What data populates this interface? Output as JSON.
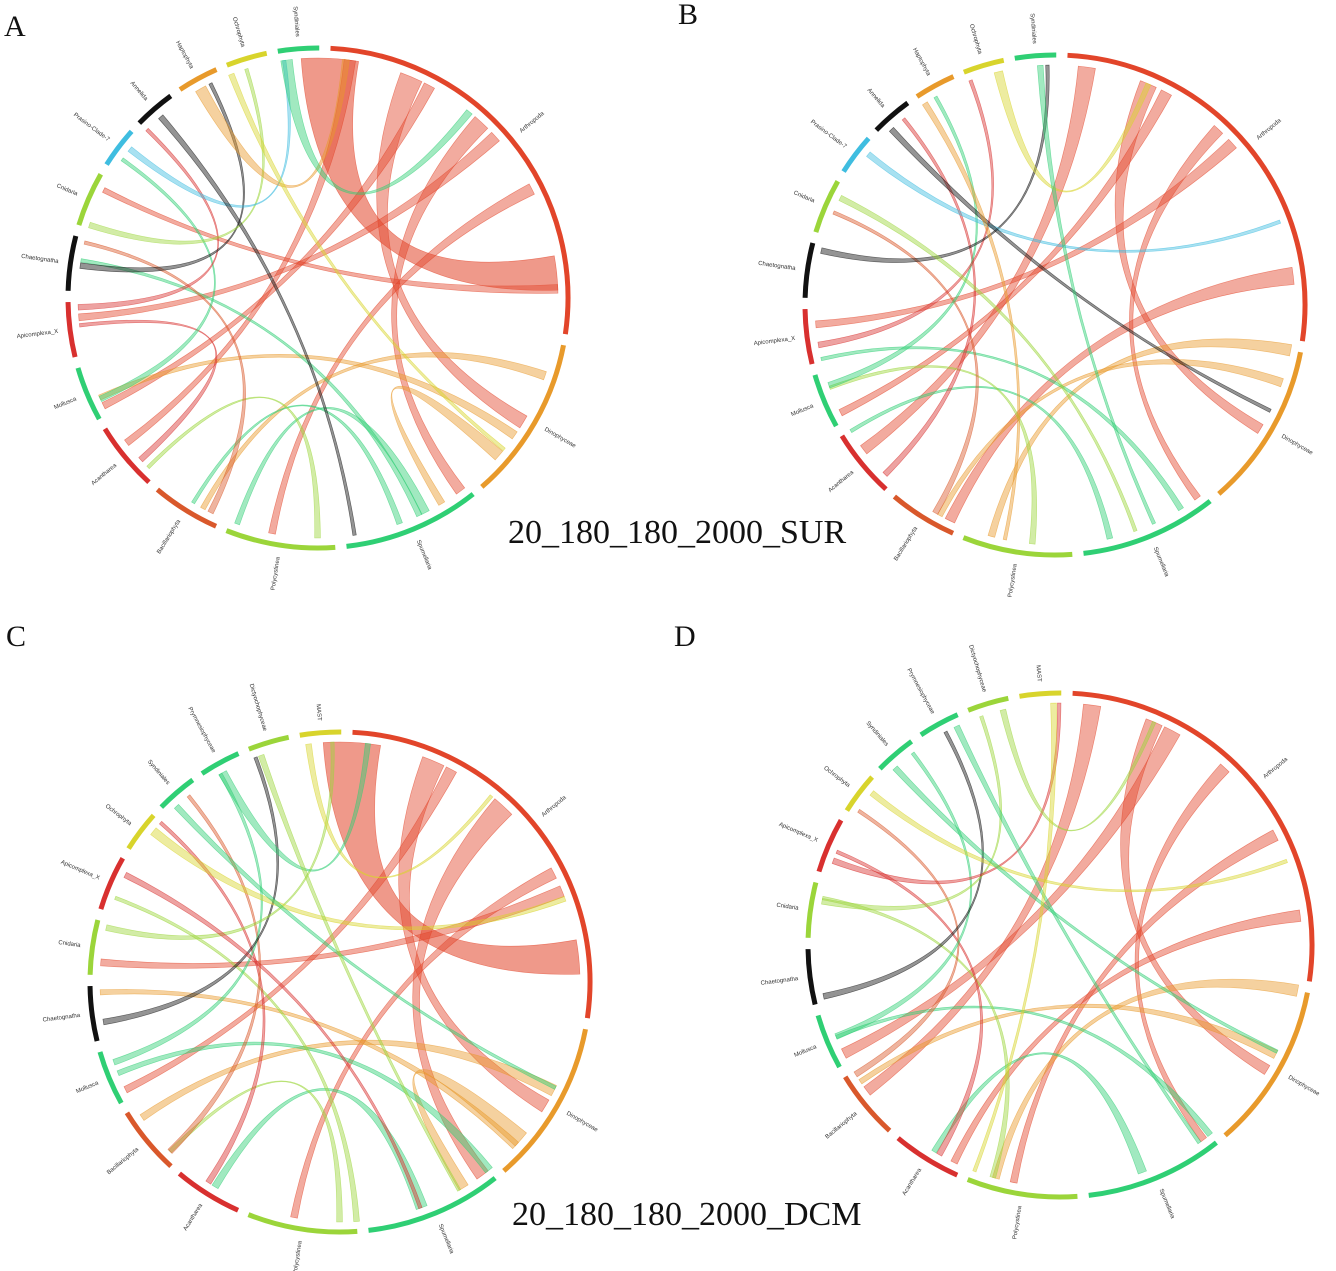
{
  "labels": {
    "a": "A",
    "b": "B",
    "c": "C",
    "d": "D"
  },
  "captions": {
    "top": "20_180_180_2000_SUR",
    "bottom": "20_180_180_2000_DCM"
  },
  "colors": {
    "red": "#e2452a",
    "orange": "#e89a2b",
    "yellow": "#d8d42c",
    "lime": "#9bd53a",
    "green": "#2fcf74",
    "teal": "#3ec6a4",
    "cyan": "#3fbde0",
    "black": "#111111",
    "crimson": "#d8302f",
    "rust": "#d9582b"
  },
  "panels": [
    {
      "id": "A",
      "groups": [
        {
          "name": "Arthropoda",
          "color": "red"
        },
        {
          "name": "Dinophyceae",
          "color": "orange"
        },
        {
          "name": "Spumellaria",
          "color": "green"
        },
        {
          "name": "Polycystinea",
          "color": "lime"
        },
        {
          "name": "Bacillariophyta",
          "color": "rust"
        },
        {
          "name": "Acantharea",
          "color": "crimson"
        },
        {
          "name": "Mollusca",
          "color": "green"
        },
        {
          "name": "Apicomplexa_X",
          "color": "crimson"
        },
        {
          "name": "Chaetognatha",
          "color": "black"
        },
        {
          "name": "Cnidaria",
          "color": "lime"
        },
        {
          "name": "Prasino-Clade-7",
          "color": "cyan"
        },
        {
          "name": "Annelida",
          "color": "black"
        },
        {
          "name": "Haptophyta",
          "color": "orange"
        },
        {
          "name": "Ochrophyta",
          "color": "yellow"
        },
        {
          "name": "Syndiniales",
          "color": "green"
        }
      ]
    },
    {
      "id": "B",
      "groups": [
        {
          "name": "Arthropoda",
          "color": "red"
        },
        {
          "name": "Dinophyceae",
          "color": "orange"
        },
        {
          "name": "Spumellaria",
          "color": "green"
        },
        {
          "name": "Polycystinea",
          "color": "lime"
        },
        {
          "name": "Bacillariophyta",
          "color": "rust"
        },
        {
          "name": "Acantharea",
          "color": "crimson"
        },
        {
          "name": "Mollusca",
          "color": "green"
        },
        {
          "name": "Apicomplexa_X",
          "color": "crimson"
        },
        {
          "name": "Chaetognatha",
          "color": "black"
        },
        {
          "name": "Cnidaria",
          "color": "lime"
        },
        {
          "name": "Prasino-Clade-7",
          "color": "cyan"
        },
        {
          "name": "Annelida",
          "color": "black"
        },
        {
          "name": "Haptophyta",
          "color": "orange"
        },
        {
          "name": "Ochrophyta",
          "color": "yellow"
        },
        {
          "name": "Syndiniales",
          "color": "green"
        }
      ]
    },
    {
      "id": "C",
      "groups": [
        {
          "name": "Arthropoda",
          "color": "red"
        },
        {
          "name": "Dinophyceae",
          "color": "orange"
        },
        {
          "name": "Spumellaria",
          "color": "green"
        },
        {
          "name": "Polycystinea",
          "color": "lime"
        },
        {
          "name": "Acantharea",
          "color": "crimson"
        },
        {
          "name": "Bacillariophyta",
          "color": "rust"
        },
        {
          "name": "Mollusca",
          "color": "green"
        },
        {
          "name": "Chaetognatha",
          "color": "black"
        },
        {
          "name": "Cnidaria",
          "color": "lime"
        },
        {
          "name": "Apicomplexa_X",
          "color": "crimson"
        },
        {
          "name": "Ochrophyta",
          "color": "yellow"
        },
        {
          "name": "Syndiniales",
          "color": "green"
        },
        {
          "name": "Prymnesiophyceae",
          "color": "green"
        },
        {
          "name": "Dictyochophyceae",
          "color": "lime"
        },
        {
          "name": "MAST",
          "color": "yellow"
        }
      ]
    },
    {
      "id": "D",
      "groups": [
        {
          "name": "Arthropoda",
          "color": "red"
        },
        {
          "name": "Dinophyceae",
          "color": "orange"
        },
        {
          "name": "Spumellaria",
          "color": "green"
        },
        {
          "name": "Polycystinea",
          "color": "lime"
        },
        {
          "name": "Acantharea",
          "color": "crimson"
        },
        {
          "name": "Bacillariophyta",
          "color": "rust"
        },
        {
          "name": "Mollusca",
          "color": "green"
        },
        {
          "name": "Chaetognatha",
          "color": "black"
        },
        {
          "name": "Cnidaria",
          "color": "lime"
        },
        {
          "name": "Apicomplexa_X",
          "color": "crimson"
        },
        {
          "name": "Ochrophyta",
          "color": "yellow"
        },
        {
          "name": "Syndiniales",
          "color": "green"
        },
        {
          "name": "Prymnesiophyceae",
          "color": "green"
        },
        {
          "name": "Dictyochophyceae",
          "color": "lime"
        },
        {
          "name": "MAST",
          "color": "yellow"
        }
      ]
    }
  ]
}
